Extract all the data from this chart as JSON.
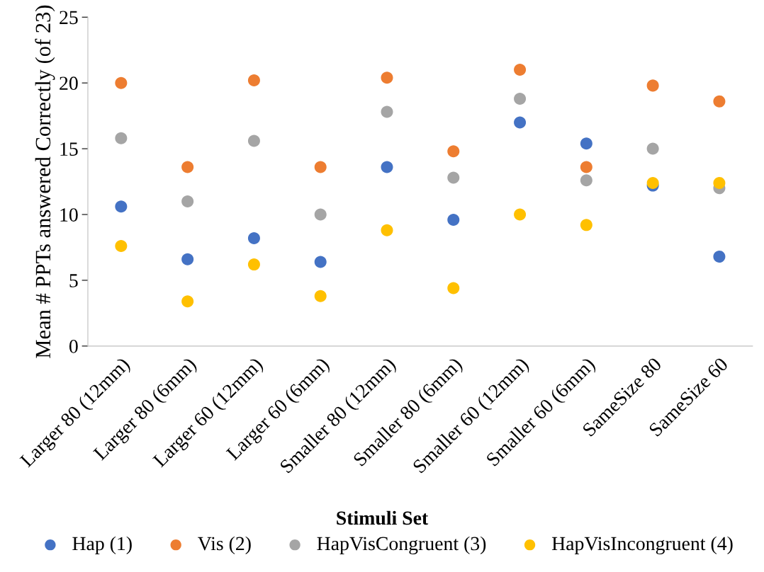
{
  "chart_data": {
    "type": "scatter",
    "xlabel": "Stimuli Set",
    "ylabel": "Mean # PPTs answered Correctly (of 23)",
    "categories": [
      "Larger 80 (12mm)",
      "Larger 80 (6mm)",
      "Larger 60 (12mm)",
      "Larger 60 (6mm)",
      "Smaller 80 (12mm)",
      "Smaller 80 (6mm)",
      "Smaller 60 (12mm)",
      "Smaller 60 (6mm)",
      "SameSize 80",
      "SameSize 60"
    ],
    "series": [
      {
        "name": "Hap (1)",
        "color": "#4472c4",
        "values": [
          10.6,
          6.6,
          8.2,
          6.4,
          13.6,
          9.6,
          17.0,
          15.4,
          12.2,
          6.8
        ]
      },
      {
        "name": "Vis (2)",
        "color": "#ed7d31",
        "values": [
          20.0,
          13.6,
          20.2,
          13.6,
          20.4,
          14.8,
          21.0,
          13.6,
          19.8,
          18.6
        ]
      },
      {
        "name": "HapVisCongruent (3)",
        "color": "#a5a5a5",
        "values": [
          15.8,
          11.0,
          15.6,
          10.0,
          17.8,
          12.8,
          18.8,
          12.6,
          15.0,
          12.0
        ]
      },
      {
        "name": "HapVisIncongruent (4)",
        "color": "#ffc000",
        "values": [
          7.6,
          3.4,
          6.2,
          3.8,
          8.8,
          4.4,
          10.0,
          9.2,
          12.4,
          12.4
        ]
      }
    ],
    "ylim": [
      0,
      25
    ],
    "yticks": [
      0,
      5,
      10,
      15,
      20,
      25
    ],
    "grid": false,
    "legend": "bottom",
    "marker": "circle"
  }
}
